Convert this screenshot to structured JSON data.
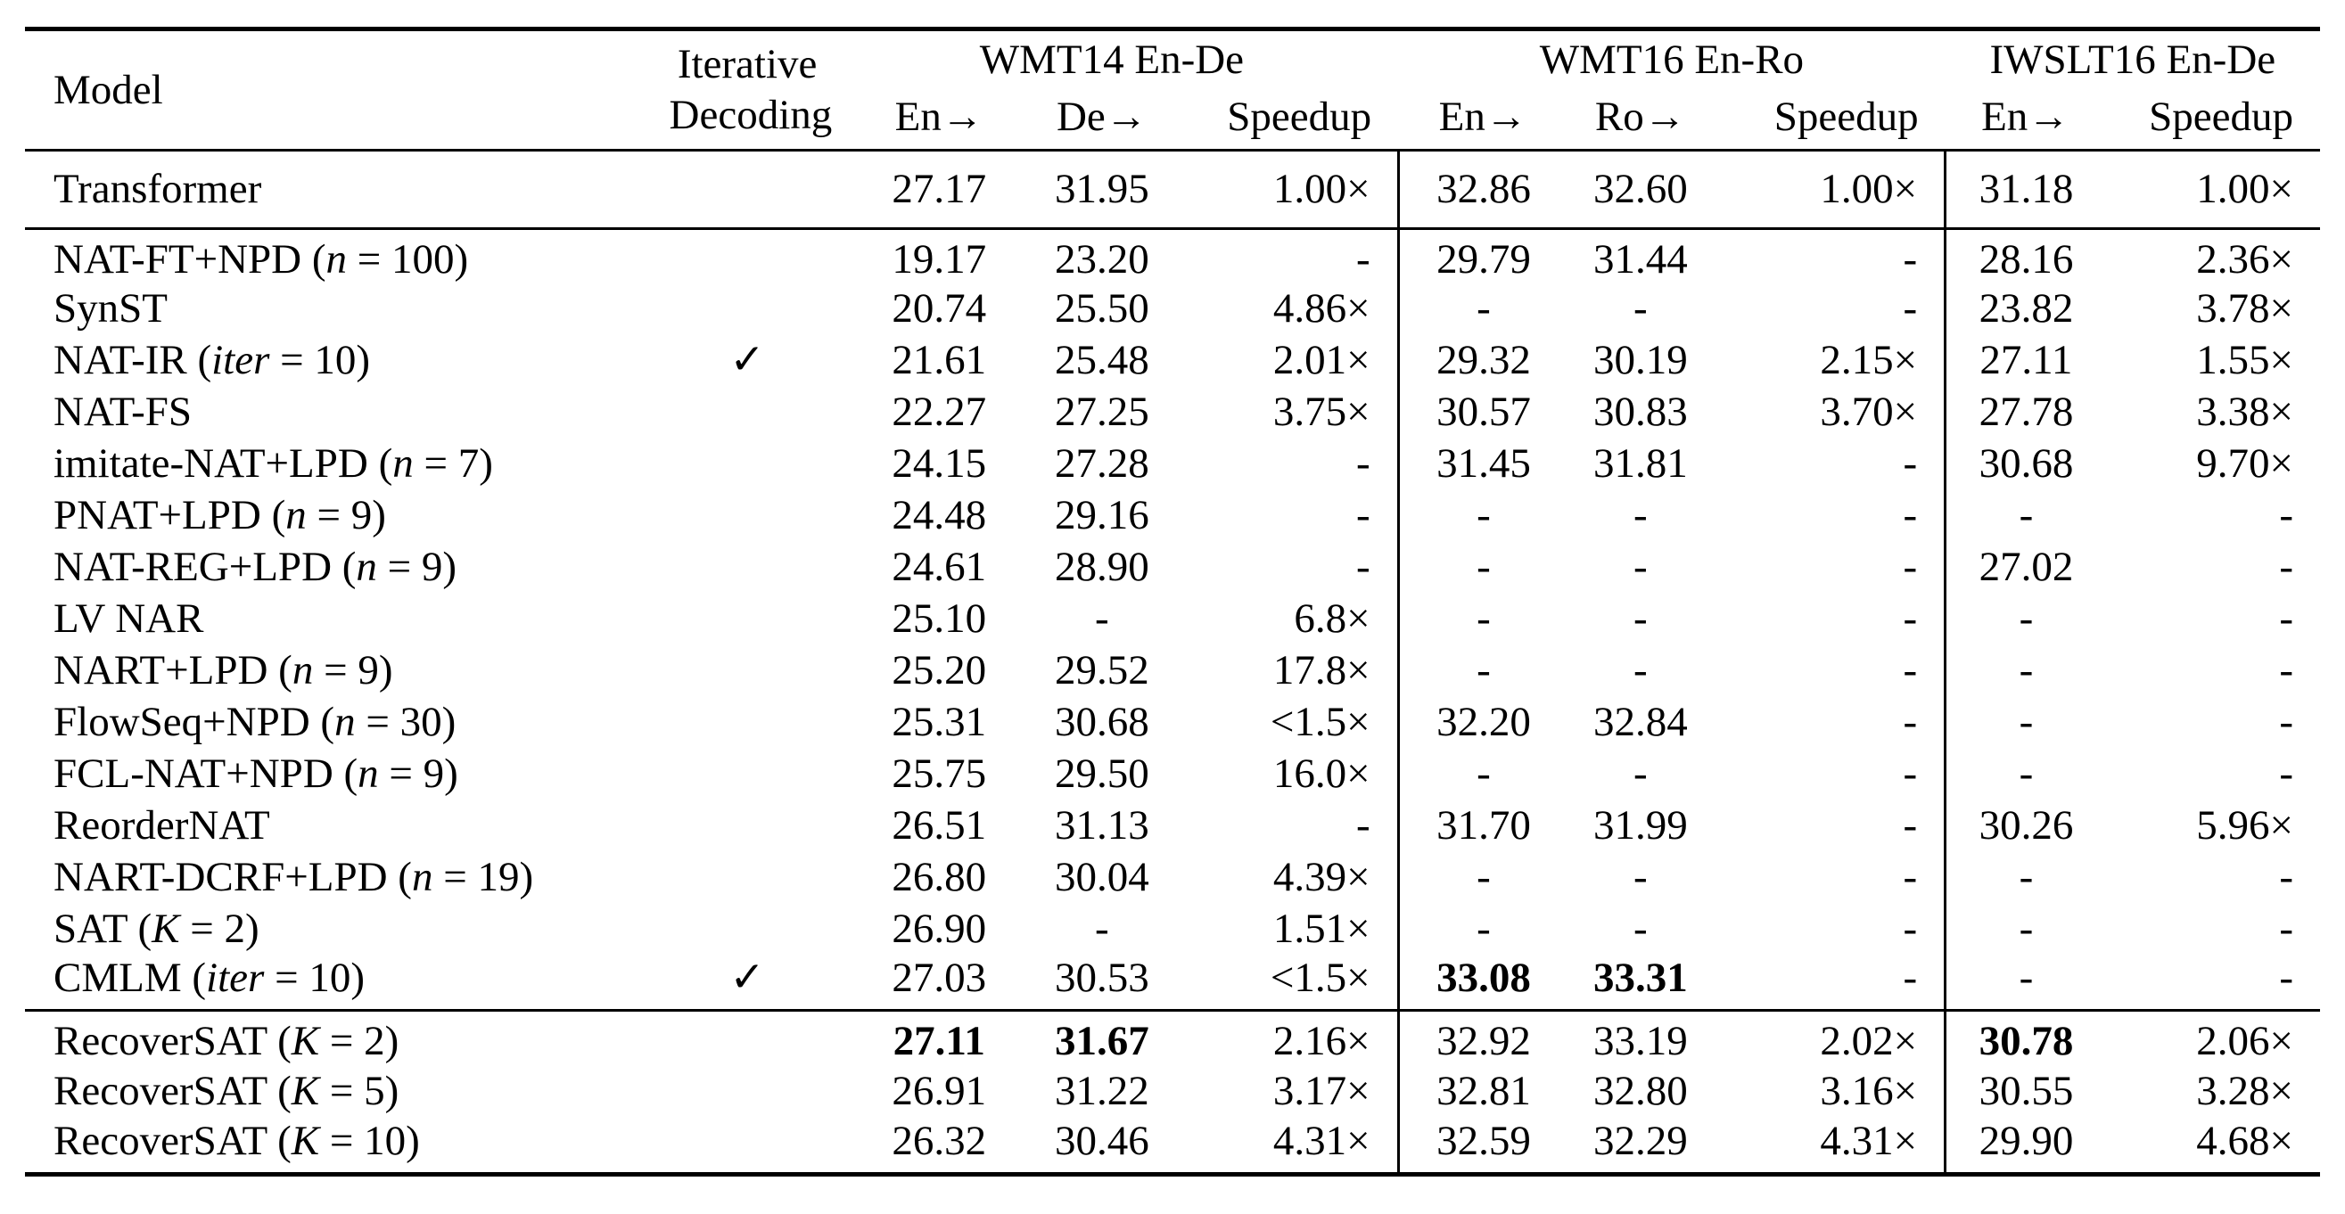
{
  "colors": {
    "text": "#000000",
    "background": "#ffffff",
    "rule": "#000000"
  },
  "table": {
    "header": {
      "model": "Model",
      "iterative_line1": "Iterative",
      "iterative_line2": "Decoding",
      "groups": [
        {
          "label": "WMT14 En-De",
          "columns": [
            "En→",
            "De→",
            "Speedup"
          ]
        },
        {
          "label": "WMT16 En-Ro",
          "columns": [
            "En→",
            "Ro→",
            "Speedup"
          ]
        },
        {
          "label": "IWSLT16 En-De",
          "columns": [
            "En→",
            "Speedup"
          ]
        }
      ]
    },
    "column_keys": [
      "wmt14-en",
      "wmt14-de",
      "wmt14-speedup",
      "wmt16-en",
      "wmt16-ro",
      "wmt16-speedup",
      "iwslt16-en",
      "iwslt16-speedup"
    ],
    "check_icon": "✓",
    "blocks": [
      {
        "rows": [
          {
            "model": [
              {
                "t": "Transformer"
              }
            ],
            "iterative_decoding": "",
            "cells": [
              "27.17",
              "31.95",
              "1.00×",
              "32.86",
              "32.60",
              "1.00×",
              "31.18",
              "1.00×"
            ]
          }
        ]
      },
      {
        "rows": [
          {
            "model": [
              {
                "t": "NAT-FT+NPD ("
              },
              {
                "t": "n",
                "i": true
              },
              {
                "t": " = 100)"
              }
            ],
            "iterative_decoding": "",
            "cells": [
              "19.17",
              "23.20",
              "-",
              "29.79",
              "31.44",
              "-",
              "28.16",
              "2.36×"
            ]
          },
          {
            "model": [
              {
                "t": "SynST"
              }
            ],
            "iterative_decoding": "",
            "cells": [
              "20.74",
              "25.50",
              "4.86×",
              "-",
              "-",
              "-",
              "23.82",
              "3.78×"
            ]
          },
          {
            "model": [
              {
                "t": "NAT-IR ("
              },
              {
                "t": "iter",
                "i": true
              },
              {
                "t": " = 10)"
              }
            ],
            "iterative_decoding": "✓",
            "cells": [
              "21.61",
              "25.48",
              "2.01×",
              "29.32",
              "30.19",
              "2.15×",
              "27.11",
              "1.55×"
            ]
          },
          {
            "model": [
              {
                "t": "NAT-FS"
              }
            ],
            "iterative_decoding": "",
            "cells": [
              "22.27",
              "27.25",
              "3.75×",
              "30.57",
              "30.83",
              "3.70×",
              "27.78",
              "3.38×"
            ]
          },
          {
            "model": [
              {
                "t": "imitate-NAT+LPD ("
              },
              {
                "t": "n",
                "i": true
              },
              {
                "t": " = 7)"
              }
            ],
            "iterative_decoding": "",
            "cells": [
              "24.15",
              "27.28",
              "-",
              "31.45",
              "31.81",
              "-",
              "30.68",
              "9.70×"
            ]
          },
          {
            "model": [
              {
                "t": "PNAT+LPD ("
              },
              {
                "t": "n",
                "i": true
              },
              {
                "t": " = 9)"
              }
            ],
            "iterative_decoding": "",
            "cells": [
              "24.48",
              "29.16",
              "-",
              "-",
              "-",
              "-",
              "-",
              "-"
            ]
          },
          {
            "model": [
              {
                "t": "NAT-REG+LPD ("
              },
              {
                "t": "n",
                "i": true
              },
              {
                "t": " = 9)"
              }
            ],
            "iterative_decoding": "",
            "cells": [
              "24.61",
              "28.90",
              "-",
              "-",
              "-",
              "-",
              "27.02",
              "-"
            ]
          },
          {
            "model": [
              {
                "t": "LV NAR"
              }
            ],
            "iterative_decoding": "",
            "cells": [
              "25.10",
              "-",
              "6.8×",
              "-",
              "-",
              "-",
              "-",
              "-"
            ]
          },
          {
            "model": [
              {
                "t": "NART+LPD ("
              },
              {
                "t": "n",
                "i": true
              },
              {
                "t": " = 9)"
              }
            ],
            "iterative_decoding": "",
            "cells": [
              "25.20",
              "29.52",
              "17.8×",
              "-",
              "-",
              "-",
              "-",
              "-"
            ]
          },
          {
            "model": [
              {
                "t": "FlowSeq+NPD ("
              },
              {
                "t": "n",
                "i": true
              },
              {
                "t": " = 30)"
              }
            ],
            "iterative_decoding": "",
            "cells": [
              "25.31",
              "30.68",
              "<1.5×",
              "32.20",
              "32.84",
              "-",
              "-",
              "-"
            ]
          },
          {
            "model": [
              {
                "t": "FCL-NAT+NPD ("
              },
              {
                "t": "n",
                "i": true
              },
              {
                "t": " = 9)"
              }
            ],
            "iterative_decoding": "",
            "cells": [
              "25.75",
              "29.50",
              "16.0×",
              "-",
              "-",
              "-",
              "-",
              "-"
            ]
          },
          {
            "model": [
              {
                "t": "ReorderNAT"
              }
            ],
            "iterative_decoding": "",
            "cells": [
              "26.51",
              "31.13",
              "-",
              "31.70",
              "31.99",
              "-",
              "30.26",
              "5.96×"
            ]
          },
          {
            "model": [
              {
                "t": "NART-DCRF+LPD ("
              },
              {
                "t": "n",
                "i": true
              },
              {
                "t": " = 19)"
              }
            ],
            "iterative_decoding": "",
            "cells": [
              "26.80",
              "30.04",
              "4.39×",
              "-",
              "-",
              "-",
              "-",
              "-"
            ]
          },
          {
            "model": [
              {
                "t": "SAT ("
              },
              {
                "t": "K",
                "i": true
              },
              {
                "t": " = 2)"
              }
            ],
            "iterative_decoding": "",
            "cells": [
              "26.90",
              "-",
              "1.51×",
              "-",
              "-",
              "-",
              "-",
              "-"
            ]
          },
          {
            "model": [
              {
                "t": "CMLM ("
              },
              {
                "t": "iter",
                "i": true
              },
              {
                "t": " = 10)"
              }
            ],
            "iterative_decoding": "✓",
            "cells": [
              "27.03",
              "30.53",
              "<1.5×",
              {
                "v": "33.08",
                "bold": true
              },
              {
                "v": "33.31",
                "bold": true
              },
              "-",
              "-",
              "-"
            ]
          }
        ]
      },
      {
        "rows": [
          {
            "model": [
              {
                "t": "RecoverSAT ("
              },
              {
                "t": "K",
                "i": true
              },
              {
                "t": " = 2)"
              }
            ],
            "iterative_decoding": "",
            "cells": [
              {
                "v": "27.11",
                "bold": true
              },
              {
                "v": "31.67",
                "bold": true
              },
              "2.16×",
              "32.92",
              "33.19",
              "2.02×",
              {
                "v": "30.78",
                "bold": true
              },
              "2.06×"
            ]
          },
          {
            "model": [
              {
                "t": "RecoverSAT ("
              },
              {
                "t": "K",
                "i": true
              },
              {
                "t": " = 5)"
              }
            ],
            "iterative_decoding": "",
            "cells": [
              "26.91",
              "31.22",
              "3.17×",
              "32.81",
              "32.80",
              "3.16×",
              "30.55",
              "3.28×"
            ]
          },
          {
            "model": [
              {
                "t": "RecoverSAT ("
              },
              {
                "t": "K",
                "i": true
              },
              {
                "t": " = 10)"
              }
            ],
            "iterative_decoding": "",
            "cells": [
              "26.32",
              "30.46",
              "4.31×",
              "32.59",
              "32.29",
              "4.31×",
              "29.90",
              "4.68×"
            ]
          }
        ]
      }
    ]
  }
}
